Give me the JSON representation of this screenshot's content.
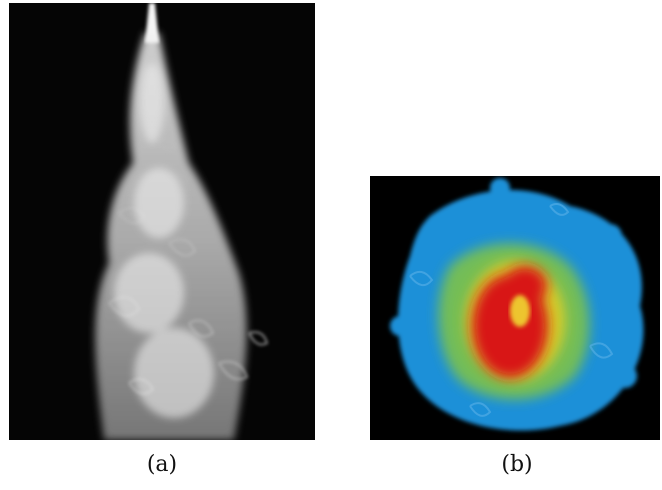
{
  "figure": {
    "panel_a": {
      "label": "(a)"
    },
    "panel_b": {
      "label": "(b)"
    }
  },
  "colors": {
    "background": "#000000",
    "smoke": "#d9d9d9",
    "cold": "#1e90d8",
    "mid": "#7ec24a",
    "warm": "#e8d020",
    "hot": "#d81818"
  }
}
